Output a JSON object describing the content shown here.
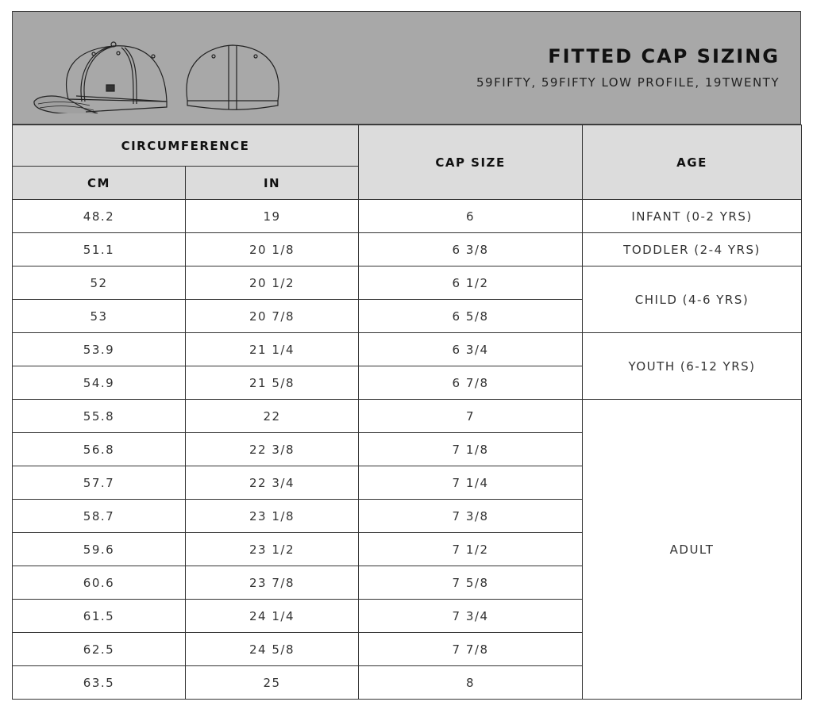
{
  "header": {
    "title": "FITTED CAP SIZING",
    "subtitle": "59FIFTY, 59FIFTY LOW PROFILE, 19TWENTY"
  },
  "columns": {
    "circumference": "CIRCUMFERENCE",
    "cm": "CM",
    "in": "IN",
    "cap_size": "CAP SIZE",
    "age": "AGE"
  },
  "rows": [
    {
      "cm": "48.2",
      "in": "19",
      "size": "6"
    },
    {
      "cm": "51.1",
      "in": "20 1/8",
      "size": "6 3/8"
    },
    {
      "cm": "52",
      "in": "20 1/2",
      "size": "6 1/2"
    },
    {
      "cm": "53",
      "in": "20 7/8",
      "size": "6 5/8"
    },
    {
      "cm": "53.9",
      "in": "21 1/4",
      "size": "6 3/4"
    },
    {
      "cm": "54.9",
      "in": "21 5/8",
      "size": "6 7/8"
    },
    {
      "cm": "55.8",
      "in": "22",
      "size": "7"
    },
    {
      "cm": "56.8",
      "in": "22 3/8",
      "size": "7 1/8"
    },
    {
      "cm": "57.7",
      "in": "22 3/4",
      "size": "7 1/4"
    },
    {
      "cm": "58.7",
      "in": "23 1/8",
      "size": "7 3/8"
    },
    {
      "cm": "59.6",
      "in": "23 1/2",
      "size": "7 1/2"
    },
    {
      "cm": "60.6",
      "in": "23 7/8",
      "size": "7 5/8"
    },
    {
      "cm": "61.5",
      "in": "24 1/4",
      "size": "7 3/4"
    },
    {
      "cm": "62.5",
      "in": "24 5/8",
      "size": "7 7/8"
    },
    {
      "cm": "63.5",
      "in": "25",
      "size": "8"
    }
  ],
  "ages": [
    {
      "label": "INFANT (0-2 YRS)",
      "span": 1
    },
    {
      "label": "TODDLER (2-4 YRS)",
      "span": 1
    },
    {
      "label": "CHILD (4-6 YRS)",
      "span": 2
    },
    {
      "label": "YOUTH (6-12 YRS)",
      "span": 2
    },
    {
      "label": "ADULT",
      "span": 9
    }
  ],
  "colors": {
    "banner": "#a8a8a8",
    "header_cell": "#dcdcdc"
  }
}
